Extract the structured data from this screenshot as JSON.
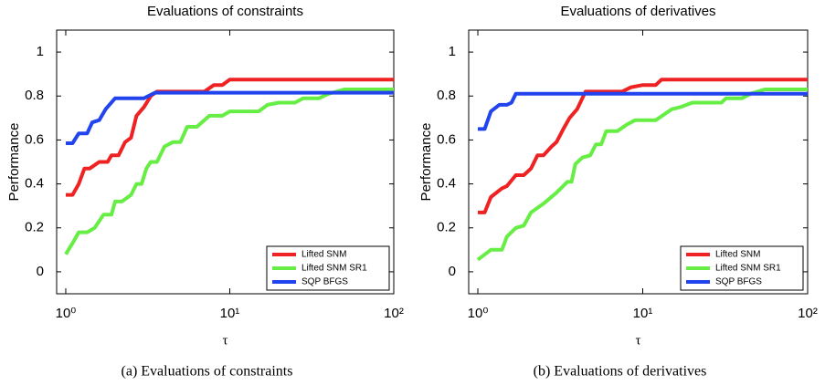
{
  "chart_data": [
    {
      "type": "line",
      "title": "Evaluations of constraints",
      "xlabel": "τ",
      "ylabel": "Performance",
      "caption": "(a)  Evaluations of constraints",
      "xscale": "log",
      "xlim": [
        0.88,
        100
      ],
      "ylim": [
        -0.1,
        1.1
      ],
      "xticks": [
        {
          "value": 1,
          "label": "10⁰"
        },
        {
          "value": 10,
          "label": "10¹"
        },
        {
          "value": 100,
          "label": "10²"
        }
      ],
      "yticks": [
        0,
        0.2,
        0.4,
        0.6,
        0.8,
        1
      ],
      "legend": "lower right",
      "series": [
        {
          "name": "Lifted SNM",
          "color": "#ee2222",
          "x": [
            1.0,
            1.1,
            1.2,
            1.3,
            1.4,
            1.6,
            1.8,
            1.9,
            2.1,
            2.3,
            2.5,
            2.7,
            3.0,
            3.3,
            3.6,
            6.0,
            7.0,
            8.0,
            9.0,
            10,
            100
          ],
          "values": [
            0.35,
            0.35,
            0.4,
            0.47,
            0.47,
            0.5,
            0.5,
            0.53,
            0.53,
            0.59,
            0.61,
            0.71,
            0.75,
            0.8,
            0.82,
            0.82,
            0.82,
            0.85,
            0.85,
            0.875,
            0.875
          ]
        },
        {
          "name": "Lifted SNM SR1",
          "color": "#66ee44",
          "x": [
            1.0,
            1.1,
            1.2,
            1.35,
            1.5,
            1.7,
            1.9,
            2.0,
            2.2,
            2.5,
            2.7,
            2.9,
            3.1,
            3.3,
            3.6,
            4.0,
            4.5,
            5.0,
            5.5,
            6.3,
            7.0,
            7.5,
            9,
            10,
            15,
            17,
            20,
            25,
            28,
            35,
            40,
            50,
            100
          ],
          "values": [
            0.08,
            0.13,
            0.18,
            0.18,
            0.2,
            0.26,
            0.26,
            0.32,
            0.32,
            0.35,
            0.4,
            0.4,
            0.47,
            0.5,
            0.5,
            0.57,
            0.59,
            0.59,
            0.66,
            0.66,
            0.69,
            0.71,
            0.71,
            0.73,
            0.73,
            0.76,
            0.77,
            0.77,
            0.79,
            0.79,
            0.81,
            0.83,
            0.83
          ]
        },
        {
          "name": "SQP BFGS",
          "color": "#2244ee",
          "x": [
            1.0,
            1.1,
            1.2,
            1.35,
            1.45,
            1.6,
            1.75,
            2.0,
            3.0,
            3.5,
            100
          ],
          "values": [
            0.585,
            0.585,
            0.63,
            0.63,
            0.68,
            0.69,
            0.74,
            0.79,
            0.79,
            0.815,
            0.815
          ]
        }
      ]
    },
    {
      "type": "line",
      "title": "Evaluations of derivatives",
      "xlabel": "τ",
      "ylabel": "Performance",
      "caption": "(b)  Evaluations of derivatives",
      "xscale": "log",
      "xlim": [
        0.88,
        100
      ],
      "ylim": [
        -0.1,
        1.1
      ],
      "xticks": [
        {
          "value": 1,
          "label": "10⁰"
        },
        {
          "value": 10,
          "label": "10¹"
        },
        {
          "value": 100,
          "label": "10²"
        }
      ],
      "yticks": [
        0,
        0.2,
        0.4,
        0.6,
        0.8,
        1
      ],
      "legend": "lower right",
      "series": [
        {
          "name": "Lifted SNM",
          "color": "#ee2222",
          "x": [
            1.0,
            1.1,
            1.2,
            1.4,
            1.5,
            1.7,
            1.9,
            2.1,
            2.3,
            2.5,
            2.8,
            3.0,
            3.3,
            3.6,
            4.0,
            4.5,
            7.5,
            8.5,
            10,
            12,
            13,
            100
          ],
          "values": [
            0.27,
            0.27,
            0.34,
            0.38,
            0.39,
            0.44,
            0.44,
            0.47,
            0.53,
            0.53,
            0.57,
            0.59,
            0.65,
            0.7,
            0.74,
            0.82,
            0.82,
            0.84,
            0.85,
            0.85,
            0.875,
            0.875
          ]
        },
        {
          "name": "Lifted SNM SR1",
          "color": "#66ee44",
          "x": [
            1.0,
            1.2,
            1.4,
            1.5,
            1.7,
            1.9,
            2.1,
            2.5,
            3.0,
            3.5,
            3.7,
            3.9,
            4.3,
            4.8,
            5.2,
            5.6,
            6.0,
            7.0,
            8.0,
            9.0,
            12,
            15,
            17,
            20,
            30,
            32,
            40,
            45,
            55,
            100
          ],
          "values": [
            0.055,
            0.1,
            0.1,
            0.16,
            0.2,
            0.21,
            0.27,
            0.31,
            0.36,
            0.41,
            0.41,
            0.49,
            0.52,
            0.53,
            0.58,
            0.58,
            0.64,
            0.64,
            0.67,
            0.69,
            0.69,
            0.74,
            0.75,
            0.77,
            0.77,
            0.79,
            0.79,
            0.81,
            0.83,
            0.83
          ]
        },
        {
          "name": "SQP BFGS",
          "color": "#2244ee",
          "x": [
            1.0,
            1.1,
            1.2,
            1.35,
            1.5,
            1.6,
            1.7,
            100
          ],
          "values": [
            0.65,
            0.65,
            0.73,
            0.76,
            0.76,
            0.77,
            0.81,
            0.81
          ]
        }
      ]
    }
  ]
}
